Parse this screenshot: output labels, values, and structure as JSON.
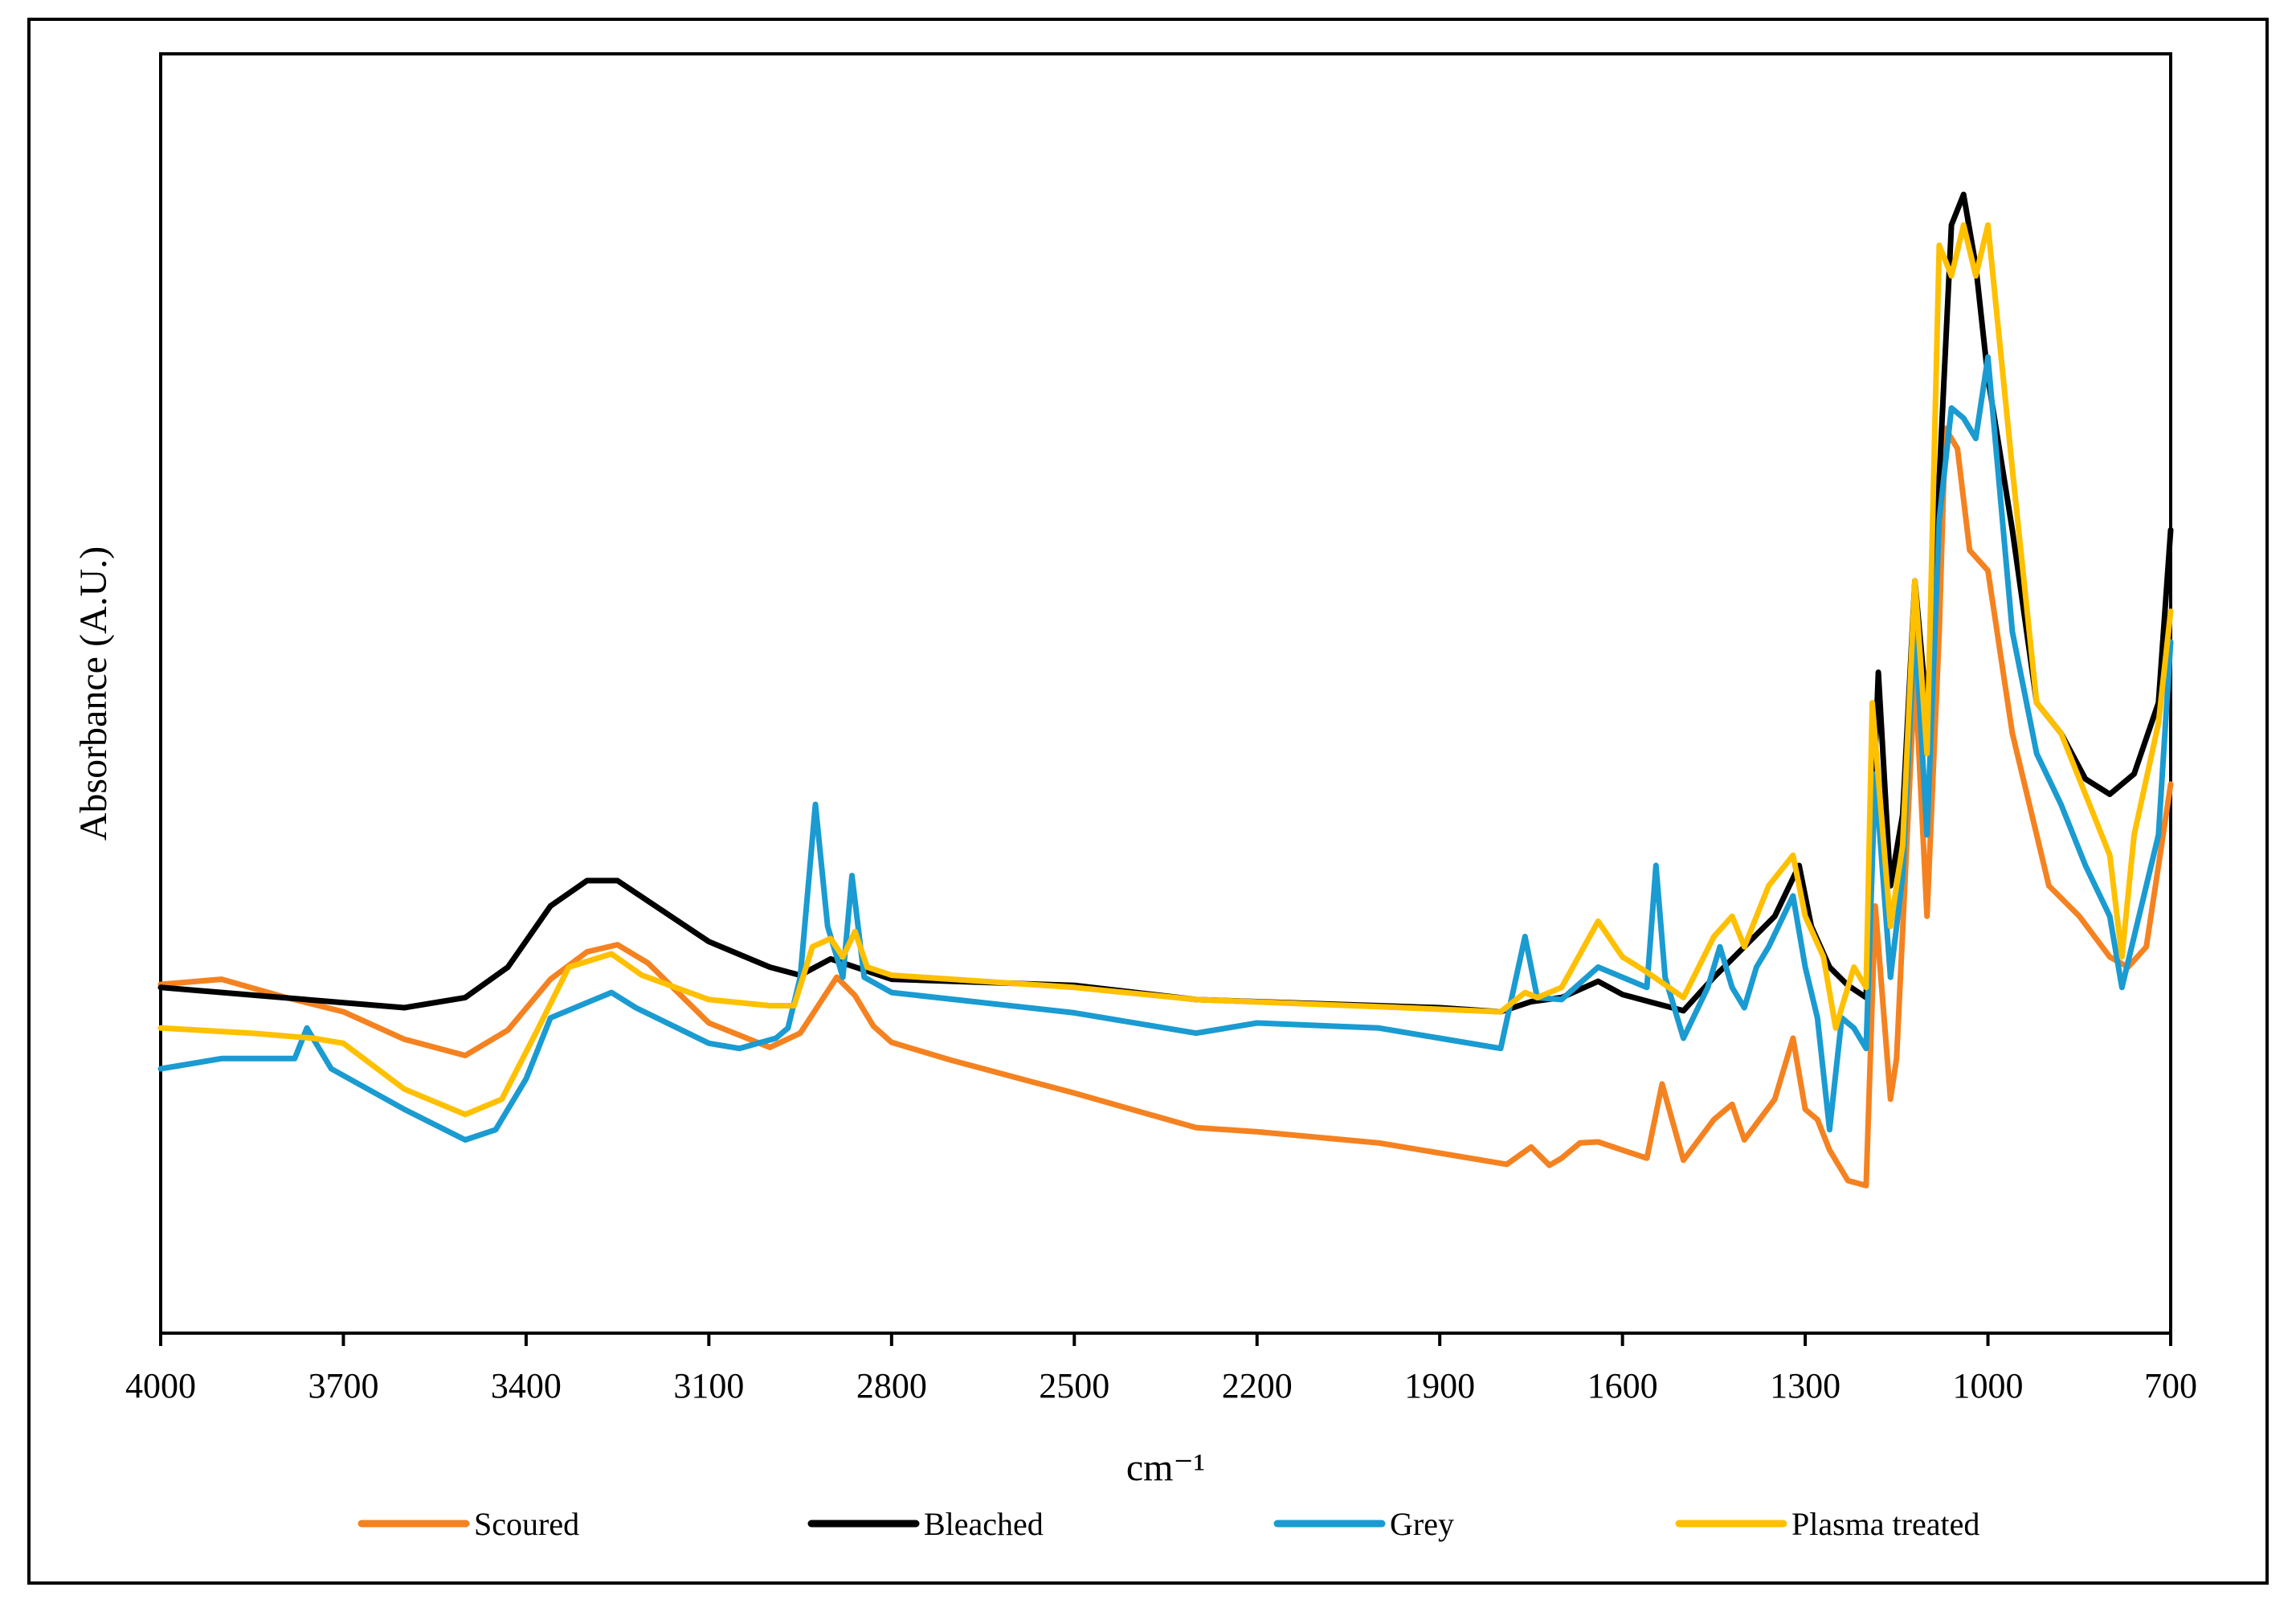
{
  "chart_data": {
    "type": "line",
    "title": "",
    "xlabel": "cm⁻¹",
    "ylabel": "Absorbance (A.U.)",
    "x_reversed": true,
    "xlim": [
      4000,
      700
    ],
    "ylim": [
      0,
      1
    ],
    "xticks": [
      "4000",
      "3700",
      "3400",
      "3100",
      "2800",
      "2500",
      "2200",
      "1900",
      "1600",
      "1300",
      "1000",
      "700"
    ],
    "yticks": [],
    "grid": false,
    "legend_position": "bottom",
    "series": [
      {
        "name": "Scoured",
        "color": "#f58220",
        "points": [
          [
            4000,
            0.253
          ],
          [
            3900,
            0.258
          ],
          [
            3800,
            0.241
          ],
          [
            3700,
            0.226
          ],
          [
            3600,
            0.199
          ],
          [
            3500,
            0.183
          ],
          [
            3430,
            0.208
          ],
          [
            3360,
            0.258
          ],
          [
            3300,
            0.285
          ],
          [
            3250,
            0.292
          ],
          [
            3200,
            0.274
          ],
          [
            3100,
            0.215
          ],
          [
            3000,
            0.191
          ],
          [
            2950,
            0.205
          ],
          [
            2890,
            0.26
          ],
          [
            2860,
            0.242
          ],
          [
            2830,
            0.212
          ],
          [
            2800,
            0.196
          ],
          [
            2700,
            0.178
          ],
          [
            2500,
            0.146
          ],
          [
            2300,
            0.112
          ],
          [
            2200,
            0.108
          ],
          [
            2000,
            0.097
          ],
          [
            1850,
            0.082
          ],
          [
            1790,
            0.076
          ],
          [
            1750,
            0.093
          ],
          [
            1720,
            0.075
          ],
          [
            1700,
            0.082
          ],
          [
            1670,
            0.097
          ],
          [
            1640,
            0.098
          ],
          [
            1600,
            0.09
          ],
          [
            1560,
            0.082
          ],
          [
            1535,
            0.155
          ],
          [
            1500,
            0.08
          ],
          [
            1450,
            0.12
          ],
          [
            1420,
            0.135
          ],
          [
            1400,
            0.1
          ],
          [
            1350,
            0.14
          ],
          [
            1320,
            0.2
          ],
          [
            1300,
            0.13
          ],
          [
            1280,
            0.12
          ],
          [
            1260,
            0.09
          ],
          [
            1230,
            0.06
          ],
          [
            1200,
            0.055
          ],
          [
            1185,
            0.33
          ],
          [
            1160,
            0.14
          ],
          [
            1150,
            0.18
          ],
          [
            1120,
            0.56
          ],
          [
            1100,
            0.32
          ],
          [
            1080,
            0.6
          ],
          [
            1070,
            0.8
          ],
          [
            1050,
            0.78
          ],
          [
            1030,
            0.68
          ],
          [
            1000,
            0.66
          ],
          [
            960,
            0.5
          ],
          [
            900,
            0.35
          ],
          [
            850,
            0.32
          ],
          [
            800,
            0.28
          ],
          [
            770,
            0.27
          ],
          [
            740,
            0.29
          ],
          [
            700,
            0.45
          ]
        ]
      },
      {
        "name": "Bleached",
        "color": "#000000",
        "points": [
          [
            4000,
            0.25
          ],
          [
            3800,
            0.24
          ],
          [
            3700,
            0.235
          ],
          [
            3600,
            0.23
          ],
          [
            3500,
            0.24
          ],
          [
            3430,
            0.27
          ],
          [
            3360,
            0.33
          ],
          [
            3300,
            0.355
          ],
          [
            3250,
            0.355
          ],
          [
            3200,
            0.335
          ],
          [
            3100,
            0.295
          ],
          [
            3000,
            0.27
          ],
          [
            2950,
            0.262
          ],
          [
            2900,
            0.278
          ],
          [
            2800,
            0.258
          ],
          [
            2500,
            0.252
          ],
          [
            2300,
            0.238
          ],
          [
            2000,
            0.232
          ],
          [
            1900,
            0.23
          ],
          [
            1800,
            0.226
          ],
          [
            1750,
            0.236
          ],
          [
            1700,
            0.24
          ],
          [
            1640,
            0.256
          ],
          [
            1600,
            0.243
          ],
          [
            1550,
            0.235
          ],
          [
            1500,
            0.227
          ],
          [
            1450,
            0.26
          ],
          [
            1400,
            0.29
          ],
          [
            1350,
            0.32
          ],
          [
            1310,
            0.37
          ],
          [
            1290,
            0.31
          ],
          [
            1260,
            0.27
          ],
          [
            1230,
            0.252
          ],
          [
            1200,
            0.24
          ],
          [
            1180,
            0.56
          ],
          [
            1160,
            0.35
          ],
          [
            1140,
            0.42
          ],
          [
            1120,
            0.65
          ],
          [
            1100,
            0.52
          ],
          [
            1080,
            0.75
          ],
          [
            1060,
            1.0
          ],
          [
            1040,
            1.03
          ],
          [
            1020,
            0.96
          ],
          [
            1000,
            0.85
          ],
          [
            960,
            0.7
          ],
          [
            920,
            0.53
          ],
          [
            880,
            0.5
          ],
          [
            840,
            0.455
          ],
          [
            800,
            0.44
          ],
          [
            760,
            0.46
          ],
          [
            720,
            0.53
          ],
          [
            700,
            0.7
          ]
        ]
      },
      {
        "name": "Grey",
        "color": "#1a9bd1",
        "points": [
          [
            4000,
            0.17
          ],
          [
            3900,
            0.18
          ],
          [
            3780,
            0.18
          ],
          [
            3760,
            0.21
          ],
          [
            3720,
            0.17
          ],
          [
            3600,
            0.13
          ],
          [
            3500,
            0.1
          ],
          [
            3450,
            0.11
          ],
          [
            3400,
            0.16
          ],
          [
            3360,
            0.22
          ],
          [
            3300,
            0.235
          ],
          [
            3260,
            0.245
          ],
          [
            3220,
            0.23
          ],
          [
            3100,
            0.195
          ],
          [
            3050,
            0.19
          ],
          [
            2990,
            0.2
          ],
          [
            2970,
            0.21
          ],
          [
            2950,
            0.26
          ],
          [
            2925,
            0.43
          ],
          [
            2905,
            0.31
          ],
          [
            2880,
            0.26
          ],
          [
            2865,
            0.36
          ],
          [
            2845,
            0.26
          ],
          [
            2800,
            0.245
          ],
          [
            2500,
            0.225
          ],
          [
            2300,
            0.205
          ],
          [
            2200,
            0.215
          ],
          [
            2000,
            0.21
          ],
          [
            1900,
            0.2
          ],
          [
            1800,
            0.19
          ],
          [
            1760,
            0.3
          ],
          [
            1740,
            0.24
          ],
          [
            1700,
            0.238
          ],
          [
            1640,
            0.27
          ],
          [
            1600,
            0.26
          ],
          [
            1560,
            0.25
          ],
          [
            1545,
            0.37
          ],
          [
            1530,
            0.26
          ],
          [
            1500,
            0.2
          ],
          [
            1460,
            0.25
          ],
          [
            1440,
            0.29
          ],
          [
            1420,
            0.25
          ],
          [
            1400,
            0.23
          ],
          [
            1380,
            0.27
          ],
          [
            1360,
            0.29
          ],
          [
            1320,
            0.34
          ],
          [
            1300,
            0.27
          ],
          [
            1280,
            0.22
          ],
          [
            1260,
            0.11
          ],
          [
            1240,
            0.22
          ],
          [
            1220,
            0.21
          ],
          [
            1200,
            0.19
          ],
          [
            1185,
            0.46
          ],
          [
            1160,
            0.26
          ],
          [
            1140,
            0.36
          ],
          [
            1120,
            0.61
          ],
          [
            1100,
            0.4
          ],
          [
            1080,
            0.71
          ],
          [
            1060,
            0.82
          ],
          [
            1040,
            0.81
          ],
          [
            1020,
            0.79
          ],
          [
            1000,
            0.87
          ],
          [
            960,
            0.6
          ],
          [
            920,
            0.48
          ],
          [
            880,
            0.43
          ],
          [
            840,
            0.37
          ],
          [
            800,
            0.32
          ],
          [
            780,
            0.25
          ],
          [
            760,
            0.3
          ],
          [
            720,
            0.4
          ],
          [
            700,
            0.59
          ]
        ]
      },
      {
        "name": "Plasma treated",
        "color": "#ffc000",
        "points": [
          [
            4000,
            0.21
          ],
          [
            3850,
            0.205
          ],
          [
            3750,
            0.2
          ],
          [
            3700,
            0.195
          ],
          [
            3600,
            0.15
          ],
          [
            3500,
            0.125
          ],
          [
            3440,
            0.14
          ],
          [
            3380,
            0.21
          ],
          [
            3330,
            0.27
          ],
          [
            3260,
            0.283
          ],
          [
            3210,
            0.262
          ],
          [
            3100,
            0.238
          ],
          [
            3000,
            0.232
          ],
          [
            2960,
            0.232
          ],
          [
            2930,
            0.29
          ],
          [
            2900,
            0.298
          ],
          [
            2880,
            0.28
          ],
          [
            2860,
            0.305
          ],
          [
            2840,
            0.27
          ],
          [
            2800,
            0.262
          ],
          [
            2500,
            0.25
          ],
          [
            2300,
            0.238
          ],
          [
            2000,
            0.231
          ],
          [
            1800,
            0.226
          ],
          [
            1760,
            0.245
          ],
          [
            1740,
            0.24
          ],
          [
            1700,
            0.25
          ],
          [
            1640,
            0.315
          ],
          [
            1600,
            0.28
          ],
          [
            1560,
            0.265
          ],
          [
            1500,
            0.24
          ],
          [
            1450,
            0.3
          ],
          [
            1420,
            0.32
          ],
          [
            1400,
            0.29
          ],
          [
            1360,
            0.35
          ],
          [
            1320,
            0.38
          ],
          [
            1300,
            0.32
          ],
          [
            1270,
            0.28
          ],
          [
            1250,
            0.21
          ],
          [
            1220,
            0.27
          ],
          [
            1200,
            0.25
          ],
          [
            1190,
            0.53
          ],
          [
            1160,
            0.31
          ],
          [
            1140,
            0.39
          ],
          [
            1120,
            0.65
          ],
          [
            1100,
            0.48
          ],
          [
            1080,
            0.98
          ],
          [
            1060,
            0.95
          ],
          [
            1040,
            1.0
          ],
          [
            1020,
            0.95
          ],
          [
            1000,
            1.0
          ],
          [
            960,
            0.76
          ],
          [
            920,
            0.53
          ],
          [
            880,
            0.5
          ],
          [
            840,
            0.44
          ],
          [
            800,
            0.38
          ],
          [
            780,
            0.28
          ],
          [
            760,
            0.4
          ],
          [
            720,
            0.51
          ],
          [
            700,
            0.62
          ]
        ]
      }
    ]
  }
}
